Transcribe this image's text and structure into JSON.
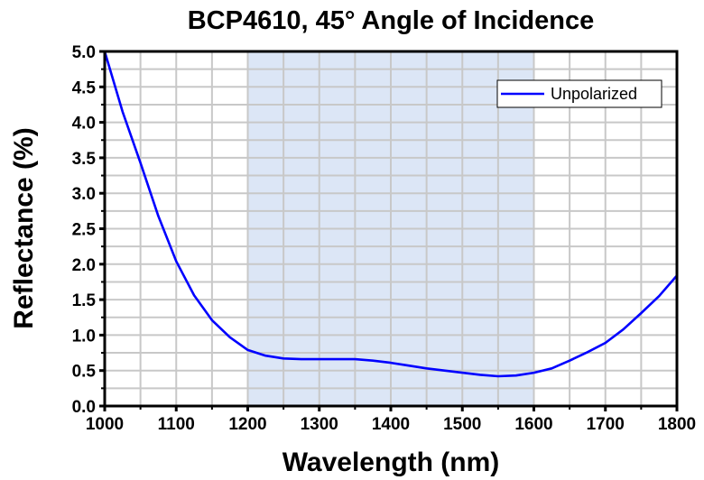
{
  "chart_data": {
    "type": "line",
    "title": "BCP4610, 45° Angle of Incidence",
    "xlabel": "Wavelength (nm)",
    "ylabel": "Reflectance (%)",
    "xlim": [
      1000,
      1800
    ],
    "ylim": [
      0,
      5.0
    ],
    "xticks": [
      "1000",
      "1100",
      "1200",
      "1300",
      "1400",
      "1500",
      "1600",
      "1700",
      "1800"
    ],
    "yticks": [
      "0.0",
      "0.5",
      "1.0",
      "1.5",
      "2.0",
      "2.5",
      "3.0",
      "3.5",
      "4.0",
      "4.5",
      "5.0"
    ],
    "grid": true,
    "legend_position": "top-right",
    "shaded_region": [
      1200,
      1600
    ],
    "colors": {
      "series": "#0000ff",
      "shade": "#dce6f6",
      "grid": "#c8c8c8"
    },
    "series": [
      {
        "name": "Unpolarized",
        "x": [
          1000,
          1025,
          1050,
          1075,
          1100,
          1125,
          1150,
          1175,
          1200,
          1225,
          1250,
          1275,
          1300,
          1325,
          1350,
          1375,
          1400,
          1425,
          1450,
          1475,
          1500,
          1525,
          1550,
          1575,
          1600,
          1625,
          1650,
          1675,
          1700,
          1725,
          1750,
          1775,
          1800
        ],
        "y": [
          5.0,
          4.15,
          3.43,
          2.68,
          2.04,
          1.56,
          1.21,
          0.97,
          0.79,
          0.71,
          0.67,
          0.66,
          0.66,
          0.66,
          0.66,
          0.64,
          0.61,
          0.57,
          0.53,
          0.5,
          0.47,
          0.44,
          0.42,
          0.43,
          0.47,
          0.53,
          0.64,
          0.76,
          0.89,
          1.08,
          1.31,
          1.55,
          1.84
        ]
      }
    ]
  }
}
